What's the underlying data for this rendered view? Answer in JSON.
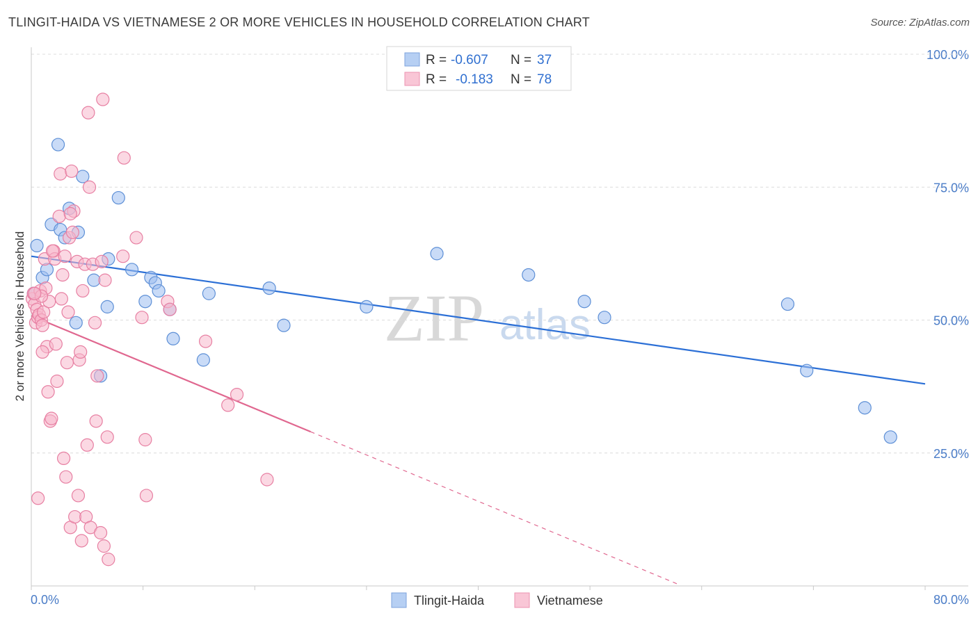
{
  "header": {
    "title": "TLINGIT-HAIDA VS VIETNAMESE 2 OR MORE VEHICLES IN HOUSEHOLD CORRELATION CHART",
    "source": "Source: ZipAtlas.com"
  },
  "watermark": {
    "zip": "ZIP",
    "atlas": "atlas"
  },
  "stats_legend": {
    "r_label": "R =",
    "n_label": "N =",
    "rows": [
      {
        "r": "-0.607",
        "n": "37"
      },
      {
        "r": "-0.183",
        "n": "78"
      }
    ]
  },
  "chart_data": {
    "type": "scatter",
    "title": "TLINGIT-HAIDA VS VIETNAMESE 2 OR MORE VEHICLES IN HOUSEHOLD CORRELATION CHART",
    "xlabel": "",
    "ylabel": "2 or more Vehicles in Household",
    "xlim": [
      0,
      80
    ],
    "ylim": [
      0,
      100
    ],
    "x_tick_labels": [
      "0.0%",
      "80.0%"
    ],
    "y_ticks": [
      25,
      50,
      75,
      100
    ],
    "y_tick_labels": [
      "25.0%",
      "50.0%",
      "75.0%",
      "100.0%"
    ],
    "grid": true,
    "legend": "bottom-center",
    "series": [
      {
        "name": "Tlingit-Haida",
        "color": "#9dbef0",
        "stroke": "#5d8fd6",
        "line_color": "#2b6fd6",
        "trend": {
          "x": [
            0,
            80
          ],
          "y": [
            62.0,
            38.0
          ],
          "extrapolate_to": 80
        },
        "points": [
          [
            0.2,
            55
          ],
          [
            0.5,
            64
          ],
          [
            1.0,
            58
          ],
          [
            1.4,
            59.5
          ],
          [
            1.8,
            68
          ],
          [
            2.4,
            83
          ],
          [
            2.6,
            67
          ],
          [
            3.0,
            65.5
          ],
          [
            3.4,
            71
          ],
          [
            4.2,
            66.5
          ],
          [
            4.6,
            77
          ],
          [
            4.0,
            49.5
          ],
          [
            5.6,
            57.5
          ],
          [
            6.2,
            39.5
          ],
          [
            6.8,
            52.5
          ],
          [
            6.9,
            61.5
          ],
          [
            7.8,
            73
          ],
          [
            9.0,
            59.5
          ],
          [
            10.2,
            53.5
          ],
          [
            10.7,
            58
          ],
          [
            11.1,
            57
          ],
          [
            11.4,
            55.5
          ],
          [
            12.4,
            52
          ],
          [
            12.7,
            46.5
          ],
          [
            15.4,
            42.5
          ],
          [
            15.9,
            55
          ],
          [
            21.3,
            56
          ],
          [
            22.6,
            49
          ],
          [
            30.0,
            52.5
          ],
          [
            36.3,
            62.5
          ],
          [
            44.5,
            58.5
          ],
          [
            49.5,
            53.5
          ],
          [
            51.3,
            50.5
          ],
          [
            67.7,
            53
          ],
          [
            69.4,
            40.5
          ],
          [
            74.6,
            33.5
          ],
          [
            76.9,
            28
          ]
        ]
      },
      {
        "name": "Vietnamese",
        "color": "#f7b8cc",
        "stroke": "#e77fa2",
        "line_color": "#e0678f",
        "trend": {
          "x": [
            0,
            25
          ],
          "y": [
            50.8,
            29.0
          ],
          "extrapolate_to": 58
        },
        "points": [
          [
            0.1,
            54
          ],
          [
            0.2,
            55
          ],
          [
            0.3,
            53
          ],
          [
            0.4,
            49.5
          ],
          [
            0.5,
            52
          ],
          [
            0.6,
            50.5
          ],
          [
            0.7,
            51
          ],
          [
            0.8,
            55.5
          ],
          [
            0.9,
            50
          ],
          [
            1.0,
            49
          ],
          [
            1.1,
            51.5
          ],
          [
            1.2,
            61.5
          ],
          [
            1.3,
            56
          ],
          [
            1.4,
            45
          ],
          [
            1.5,
            36.5
          ],
          [
            1.6,
            53.5
          ],
          [
            1.7,
            31
          ],
          [
            1.8,
            31.5
          ],
          [
            2.0,
            63
          ],
          [
            2.1,
            61.5
          ],
          [
            2.2,
            45.5
          ],
          [
            2.3,
            38.5
          ],
          [
            2.6,
            77.5
          ],
          [
            2.7,
            54
          ],
          [
            2.8,
            58.5
          ],
          [
            2.9,
            24
          ],
          [
            3.0,
            62
          ],
          [
            3.1,
            20.5
          ],
          [
            3.2,
            42
          ],
          [
            3.3,
            51.5
          ],
          [
            3.4,
            65.5
          ],
          [
            3.5,
            11
          ],
          [
            3.6,
            78
          ],
          [
            3.7,
            66.5
          ],
          [
            3.8,
            70.5
          ],
          [
            3.9,
            13
          ],
          [
            4.1,
            61
          ],
          [
            4.2,
            17
          ],
          [
            4.3,
            42.5
          ],
          [
            4.4,
            44
          ],
          [
            4.5,
            8.5
          ],
          [
            4.6,
            55.5
          ],
          [
            4.8,
            60.5
          ],
          [
            4.9,
            13
          ],
          [
            5.0,
            26.5
          ],
          [
            5.1,
            89
          ],
          [
            5.2,
            75
          ],
          [
            5.3,
            11
          ],
          [
            5.5,
            60.5
          ],
          [
            5.7,
            49.5
          ],
          [
            5.8,
            31
          ],
          [
            5.9,
            39.5
          ],
          [
            6.2,
            10
          ],
          [
            6.3,
            61
          ],
          [
            6.4,
            91.5
          ],
          [
            6.5,
            7.5
          ],
          [
            6.6,
            57.5
          ],
          [
            6.8,
            28
          ],
          [
            6.9,
            5
          ],
          [
            8.2,
            62
          ],
          [
            8.3,
            80.5
          ],
          [
            9.4,
            65.5
          ],
          [
            9.9,
            50.5
          ],
          [
            10.2,
            27.5
          ],
          [
            10.3,
            17
          ],
          [
            12.2,
            53.5
          ],
          [
            12.4,
            52
          ],
          [
            15.6,
            46
          ],
          [
            17.6,
            34
          ],
          [
            18.4,
            36
          ],
          [
            21.1,
            20
          ],
          [
            0.6,
            16.5
          ],
          [
            2.5,
            69.5
          ],
          [
            1.9,
            63
          ],
          [
            0.9,
            54.5
          ],
          [
            3.5,
            70
          ],
          [
            1.0,
            44
          ],
          [
            0.3,
            55
          ]
        ]
      }
    ]
  },
  "bottom_legend": {
    "items": [
      "Tlingit-Haida",
      "Vietnamese"
    ]
  }
}
